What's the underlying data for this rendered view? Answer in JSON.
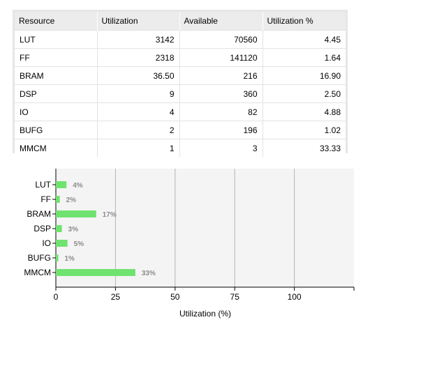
{
  "table": {
    "headers": [
      "Resource",
      "Utilization",
      "Available",
      "Utilization %"
    ],
    "rows": [
      {
        "resource": "LUT",
        "utilization": "3142",
        "available": "70560",
        "pct": "4.45"
      },
      {
        "resource": "FF",
        "utilization": "2318",
        "available": "141120",
        "pct": "1.64"
      },
      {
        "resource": "BRAM",
        "utilization": "36.50",
        "available": "216",
        "pct": "16.90"
      },
      {
        "resource": "DSP",
        "utilization": "9",
        "available": "360",
        "pct": "2.50"
      },
      {
        "resource": "IO",
        "utilization": "4",
        "available": "82",
        "pct": "4.88"
      },
      {
        "resource": "BUFG",
        "utilization": "2",
        "available": "196",
        "pct": "1.02"
      },
      {
        "resource": "MMCM",
        "utilization": "1",
        "available": "3",
        "pct": "33.33"
      }
    ]
  },
  "chart_data": {
    "type": "bar",
    "orientation": "horizontal",
    "categories": [
      "LUT",
      "FF",
      "BRAM",
      "DSP",
      "IO",
      "BUFG",
      "MMCM"
    ],
    "values": [
      4.45,
      1.64,
      16.9,
      2.5,
      4.88,
      1.02,
      33.33
    ],
    "value_labels": [
      "4%",
      "2%",
      "17%",
      "3%",
      "5%",
      "1%",
      "33%"
    ],
    "xlabel": "Utilization (%)",
    "ylabel": "",
    "xlim": [
      0,
      125
    ],
    "xticks": [
      0,
      25,
      50,
      75,
      100
    ],
    "grid": true,
    "bar_color": "#6fe26f",
    "plot_background": "#f4f4f4",
    "grid_color": "#b4b4b4"
  }
}
